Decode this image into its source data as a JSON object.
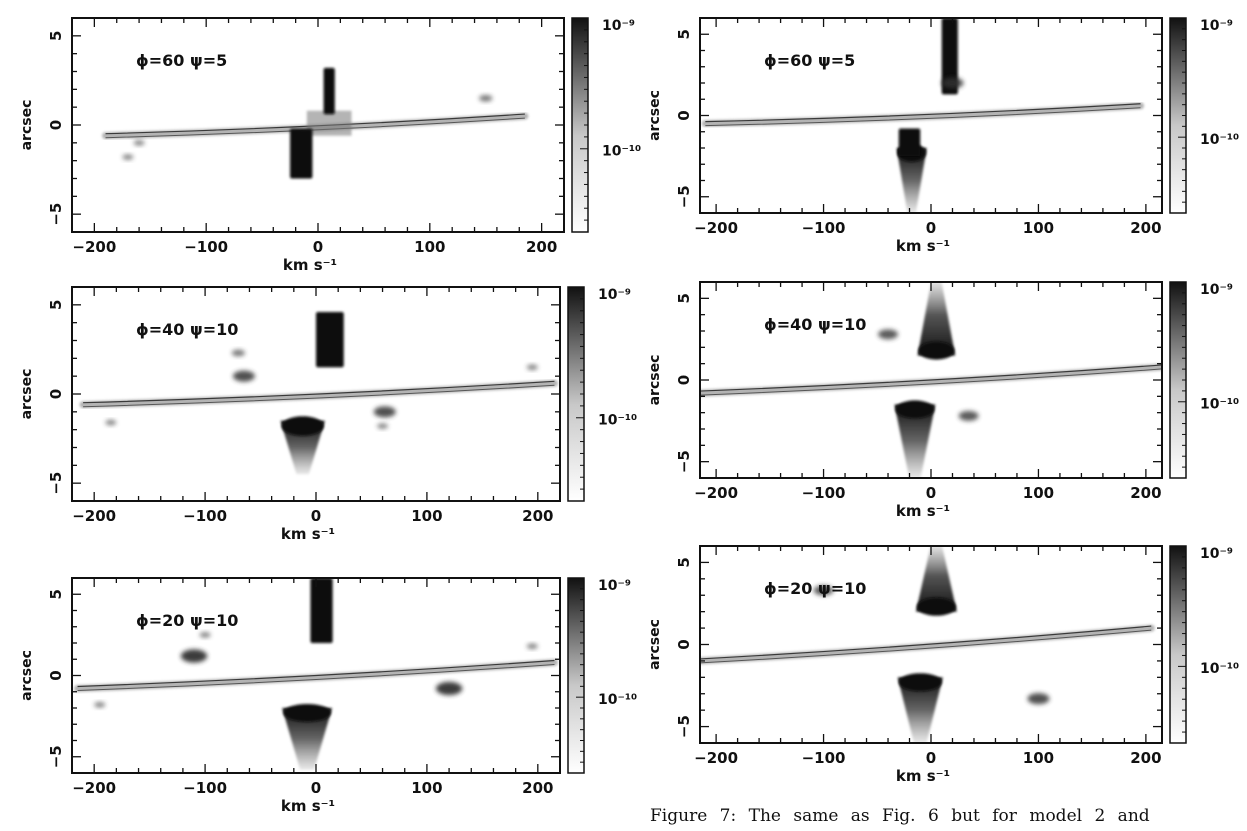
{
  "caption": "Figure 7: The same as Fig. 6 but for model 2 and",
  "chart_data": [
    {
      "type": "heatmap",
      "column": "left",
      "title": "ϕ=60 ψ=5",
      "xlabel": "km s⁻¹",
      "ylabel": "arcsec",
      "xticks": [
        "−200",
        "−100",
        "0",
        "100",
        "200"
      ],
      "yticks": [
        "−5",
        "0",
        "5"
      ],
      "xlim": [
        -220,
        220
      ],
      "ylim": [
        -6,
        6
      ],
      "colorbar": {
        "top": "10⁻⁹",
        "mid": "10⁻¹⁰",
        "scale": "log"
      },
      "features": {
        "disk": {
          "x_start": -190,
          "y_start": -0.6,
          "x_end": 185,
          "y_end": 0.5
        },
        "bright": [
          [
            5,
            15,
            0.6,
            3.2
          ],
          [
            -25,
            -5,
            -3.0,
            -0.2
          ]
        ],
        "faint": [
          [
            -10,
            30,
            -0.6,
            0.8
          ]
        ],
        "cones": [],
        "blobs": [
          [
            150,
            1.5,
            0.3
          ],
          [
            -160,
            -1.0,
            0.25
          ],
          [
            -170,
            -1.8,
            0.25
          ]
        ]
      }
    },
    {
      "type": "heatmap",
      "column": "left",
      "title": "ϕ=40 ψ=10",
      "xlabel": "km s⁻¹",
      "ylabel": "arcsec",
      "xticks": [
        "−200",
        "−100",
        "0",
        "100",
        "200"
      ],
      "yticks": [
        "−5",
        "0",
        "5"
      ],
      "xlim": [
        -220,
        220
      ],
      "ylim": [
        -6,
        6
      ],
      "colorbar": {
        "top": "10⁻⁹",
        "mid": "10⁻¹⁰",
        "scale": "log"
      },
      "features": {
        "disk": {
          "x_start": -210,
          "y_start": -0.6,
          "x_end": 215,
          "y_end": 0.6
        },
        "bright": [
          [
            0,
            25,
            1.5,
            4.6
          ]
        ],
        "faint": [],
        "cones": [
          [
            -12,
            -1.5,
            -4.5,
            40
          ]
        ],
        "blobs": [
          [
            -65,
            1.0,
            0.5
          ],
          [
            62,
            -1.0,
            0.5
          ],
          [
            -70,
            2.3,
            0.3
          ],
          [
            -185,
            -1.6,
            0.25
          ],
          [
            60,
            -1.8,
            0.25
          ],
          [
            195,
            1.5,
            0.25
          ]
        ]
      }
    },
    {
      "type": "heatmap",
      "column": "left",
      "title": "ϕ=20 ψ=10",
      "xlabel": "km s⁻¹",
      "ylabel": "arcsec",
      "xticks": [
        "−200",
        "−100",
        "0",
        "100",
        "200"
      ],
      "yticks": [
        "−5",
        "0",
        "5"
      ],
      "xlim": [
        -220,
        220
      ],
      "ylim": [
        -6,
        6
      ],
      "colorbar": {
        "top": "10⁻⁹",
        "mid": "10⁻¹⁰",
        "scale": "log"
      },
      "features": {
        "disk": {
          "x_start": -215,
          "y_start": -0.8,
          "x_end": 215,
          "y_end": 0.8
        },
        "bright": [
          [
            -5,
            15,
            2.0,
            6.0
          ]
        ],
        "faint": [],
        "cones": [
          [
            -8,
            -2.0,
            -5.8,
            45
          ]
        ],
        "blobs": [
          [
            -110,
            1.2,
            0.6
          ],
          [
            120,
            -0.8,
            0.6
          ],
          [
            -195,
            -1.8,
            0.25
          ],
          [
            195,
            1.8,
            0.25
          ],
          [
            -100,
            2.5,
            0.25
          ]
        ]
      }
    },
    {
      "type": "heatmap",
      "column": "right",
      "title": "ϕ=60 ψ=5",
      "xlabel": "km s⁻¹",
      "ylabel": "arcsec",
      "xticks": [
        "−200",
        "−100",
        "0",
        "100",
        "200"
      ],
      "yticks": [
        "−5",
        "0",
        "5"
      ],
      "xlim": [
        -215,
        215
      ],
      "ylim": [
        -6,
        6
      ],
      "colorbar": {
        "top": "10⁻⁹",
        "mid": "10⁻¹⁰",
        "scale": "log"
      },
      "features": {
        "disk": {
          "x_start": -210,
          "y_start": -0.5,
          "x_end": 195,
          "y_end": 0.6
        },
        "bright": [
          [
            10,
            25,
            1.3,
            6.0
          ],
          [
            -30,
            -10,
            -2.5,
            -0.8
          ]
        ],
        "faint": [],
        "cones": [
          [
            -18,
            -2.0,
            -6.0,
            28
          ]
        ],
        "blobs": [
          [
            20,
            2.0,
            0.5
          ]
        ]
      }
    },
    {
      "type": "heatmap",
      "column": "right",
      "title": "ϕ=40 ψ=10",
      "xlabel": "km s⁻¹",
      "ylabel": "arcsec",
      "xticks": [
        "−200",
        "−100",
        "0",
        "100",
        "200"
      ],
      "yticks": [
        "−5",
        "0",
        "5"
      ],
      "xlim": [
        -215,
        215
      ],
      "ylim": [
        -6,
        6
      ],
      "colorbar": {
        "top": "10⁻⁹",
        "mid": "10⁻¹⁰",
        "scale": "log"
      },
      "features": {
        "disk": {
          "x_start": -215,
          "y_start": -0.8,
          "x_end": 215,
          "y_end": 0.8
        },
        "bright": [],
        "faint": [],
        "cones": [
          [
            5,
            1.5,
            6.0,
            35
          ],
          [
            -15,
            -1.5,
            -6.0,
            38
          ]
        ],
        "blobs": [
          [
            -40,
            2.8,
            0.45
          ],
          [
            35,
            -2.2,
            0.45
          ]
        ]
      }
    },
    {
      "type": "heatmap",
      "column": "right",
      "title": "ϕ=20 ψ=10",
      "xlabel": "km s⁻¹",
      "ylabel": "arcsec",
      "xticks": [
        "−200",
        "−100",
        "0",
        "100",
        "200"
      ],
      "yticks": [
        "−5",
        "0",
        "5"
      ],
      "xlim": [
        -215,
        215
      ],
      "ylim": [
        -6,
        6
      ],
      "colorbar": {
        "top": "10⁻⁹",
        "mid": "10⁻¹⁰",
        "scale": "log"
      },
      "features": {
        "disk": {
          "x_start": -215,
          "y_start": -1.0,
          "x_end": 205,
          "y_end": 1.0
        },
        "bright": [],
        "faint": [],
        "cones": [
          [
            5,
            2.0,
            6.0,
            38
          ],
          [
            -10,
            -2.0,
            -6.0,
            42
          ]
        ],
        "blobs": [
          [
            -100,
            3.3,
            0.45
          ],
          [
            100,
            -3.3,
            0.5
          ]
        ]
      }
    }
  ]
}
